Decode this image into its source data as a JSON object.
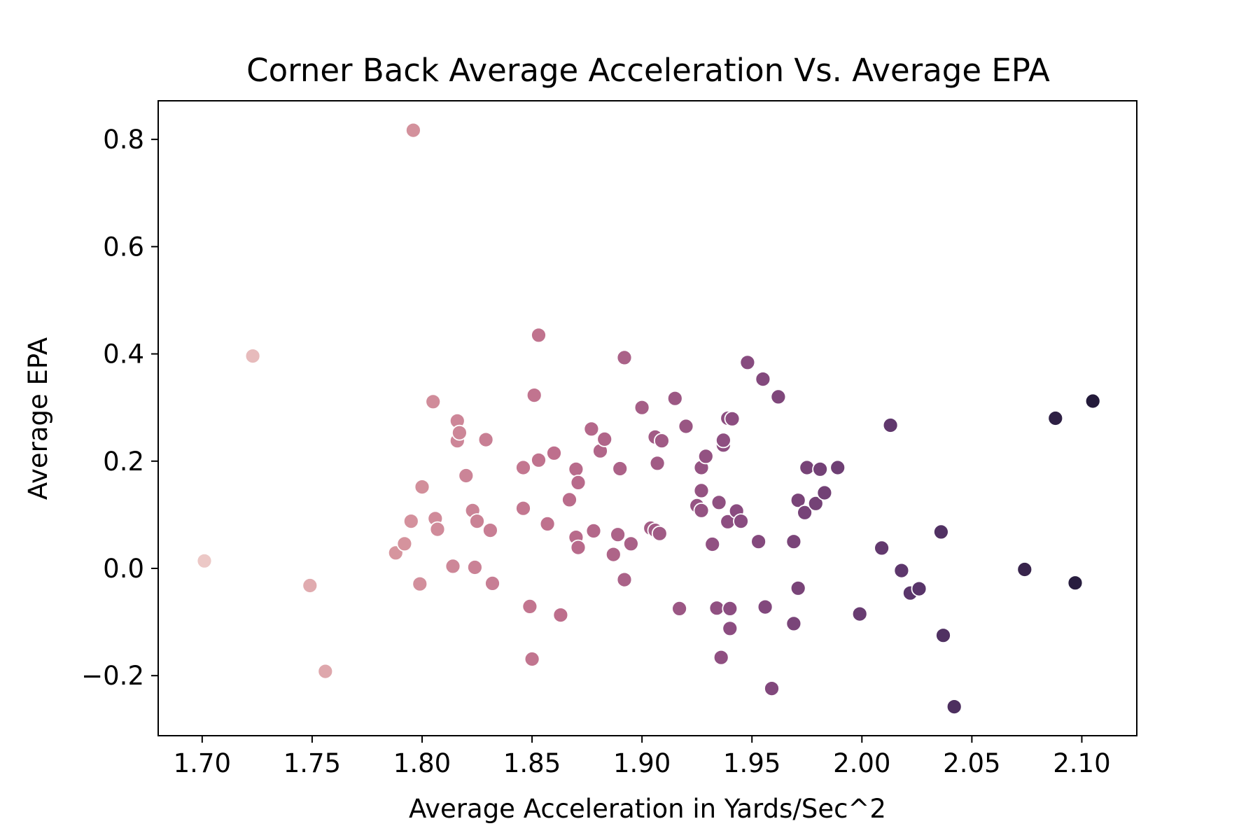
{
  "chart_data": {
    "type": "scatter",
    "title": "Corner Back Average Acceleration Vs. Average EPA",
    "xlabel": "Average Acceleration in Yards/Sec^2",
    "ylabel": "Average EPA",
    "xlim": [
      1.68,
      2.125
    ],
    "ylim": [
      -0.312,
      0.872
    ],
    "xticks": [
      1.7,
      1.75,
      1.8,
      1.85,
      1.9,
      1.95,
      2.0,
      2.05,
      2.1
    ],
    "xtick_labels": [
      "1.70",
      "1.75",
      "1.80",
      "1.85",
      "1.90",
      "1.95",
      "2.00",
      "2.05",
      "2.10"
    ],
    "yticks": [
      -0.2,
      0.0,
      0.2,
      0.4,
      0.6,
      0.8
    ],
    "ytick_labels": [
      "−0.2",
      "0.0",
      "0.2",
      "0.4",
      "0.6",
      "0.8"
    ],
    "grid": false,
    "legend": "none",
    "color_encoding": "x",
    "colormap": [
      "#ecc8c6",
      "#d898a0",
      "#bd6e8c",
      "#8a4c80",
      "#59356a",
      "#231a3a"
    ],
    "points": [
      {
        "x": 1.701,
        "y": 0.014
      },
      {
        "x": 1.723,
        "y": 0.396
      },
      {
        "x": 1.749,
        "y": -0.032
      },
      {
        "x": 1.756,
        "y": -0.192
      },
      {
        "x": 1.788,
        "y": 0.029
      },
      {
        "x": 1.792,
        "y": 0.046
      },
      {
        "x": 1.795,
        "y": 0.088
      },
      {
        "x": 1.796,
        "y": 0.817
      },
      {
        "x": 1.799,
        "y": -0.029
      },
      {
        "x": 1.8,
        "y": 0.152
      },
      {
        "x": 1.805,
        "y": 0.311
      },
      {
        "x": 1.806,
        "y": 0.093
      },
      {
        "x": 1.807,
        "y": 0.073
      },
      {
        "x": 1.814,
        "y": 0.004
      },
      {
        "x": 1.816,
        "y": 0.275
      },
      {
        "x": 1.816,
        "y": 0.238
      },
      {
        "x": 1.817,
        "y": 0.253
      },
      {
        "x": 1.82,
        "y": 0.173
      },
      {
        "x": 1.823,
        "y": 0.108
      },
      {
        "x": 1.824,
        "y": 0.002
      },
      {
        "x": 1.825,
        "y": 0.088
      },
      {
        "x": 1.829,
        "y": 0.24
      },
      {
        "x": 1.831,
        "y": 0.071
      },
      {
        "x": 1.832,
        "y": -0.028
      },
      {
        "x": 1.846,
        "y": 0.188
      },
      {
        "x": 1.846,
        "y": 0.112
      },
      {
        "x": 1.849,
        "y": -0.071
      },
      {
        "x": 1.85,
        "y": -0.169
      },
      {
        "x": 1.851,
        "y": 0.323
      },
      {
        "x": 1.853,
        "y": 0.435
      },
      {
        "x": 1.853,
        "y": 0.202
      },
      {
        "x": 1.857,
        "y": 0.083
      },
      {
        "x": 1.86,
        "y": 0.215
      },
      {
        "x": 1.863,
        "y": -0.087
      },
      {
        "x": 1.867,
        "y": 0.128
      },
      {
        "x": 1.87,
        "y": 0.185
      },
      {
        "x": 1.87,
        "y": 0.058
      },
      {
        "x": 1.871,
        "y": 0.16
      },
      {
        "x": 1.871,
        "y": 0.039
      },
      {
        "x": 1.877,
        "y": 0.26
      },
      {
        "x": 1.878,
        "y": 0.07
      },
      {
        "x": 1.881,
        "y": 0.219
      },
      {
        "x": 1.883,
        "y": 0.241
      },
      {
        "x": 1.887,
        "y": 0.026
      },
      {
        "x": 1.889,
        "y": 0.063
      },
      {
        "x": 1.89,
        "y": 0.186
      },
      {
        "x": 1.892,
        "y": 0.393
      },
      {
        "x": 1.892,
        "y": -0.021
      },
      {
        "x": 1.895,
        "y": 0.046
      },
      {
        "x": 1.9,
        "y": 0.3
      },
      {
        "x": 1.904,
        "y": 0.075
      },
      {
        "x": 1.906,
        "y": 0.245
      },
      {
        "x": 1.906,
        "y": 0.071
      },
      {
        "x": 1.907,
        "y": 0.196
      },
      {
        "x": 1.908,
        "y": 0.065
      },
      {
        "x": 1.909,
        "y": 0.238
      },
      {
        "x": 1.915,
        "y": 0.317
      },
      {
        "x": 1.917,
        "y": -0.075
      },
      {
        "x": 1.92,
        "y": 0.265
      },
      {
        "x": 1.925,
        "y": 0.117
      },
      {
        "x": 1.927,
        "y": 0.188
      },
      {
        "x": 1.927,
        "y": 0.145
      },
      {
        "x": 1.927,
        "y": 0.108
      },
      {
        "x": 1.929,
        "y": 0.209
      },
      {
        "x": 1.932,
        "y": 0.045
      },
      {
        "x": 1.934,
        "y": -0.074
      },
      {
        "x": 1.935,
        "y": 0.123
      },
      {
        "x": 1.936,
        "y": -0.166
      },
      {
        "x": 1.937,
        "y": 0.23
      },
      {
        "x": 1.937,
        "y": 0.239
      },
      {
        "x": 1.939,
        "y": 0.28
      },
      {
        "x": 1.939,
        "y": 0.087
      },
      {
        "x": 1.94,
        "y": -0.075
      },
      {
        "x": 1.94,
        "y": -0.112
      },
      {
        "x": 1.941,
        "y": 0.279
      },
      {
        "x": 1.943,
        "y": 0.107
      },
      {
        "x": 1.945,
        "y": 0.088
      },
      {
        "x": 1.948,
        "y": 0.384
      },
      {
        "x": 1.953,
        "y": 0.05
      },
      {
        "x": 1.955,
        "y": 0.353
      },
      {
        "x": 1.956,
        "y": -0.072
      },
      {
        "x": 1.959,
        "y": -0.224
      },
      {
        "x": 1.962,
        "y": 0.32
      },
      {
        "x": 1.969,
        "y": 0.05
      },
      {
        "x": 1.969,
        "y": -0.103
      },
      {
        "x": 1.971,
        "y": 0.127
      },
      {
        "x": 1.971,
        "y": -0.037
      },
      {
        "x": 1.974,
        "y": 0.104
      },
      {
        "x": 1.975,
        "y": 0.188
      },
      {
        "x": 1.979,
        "y": 0.121
      },
      {
        "x": 1.981,
        "y": 0.185
      },
      {
        "x": 1.983,
        "y": 0.141
      },
      {
        "x": 1.989,
        "y": 0.188
      },
      {
        "x": 1.999,
        "y": -0.085
      },
      {
        "x": 2.009,
        "y": 0.038
      },
      {
        "x": 2.013,
        "y": 0.267
      },
      {
        "x": 2.018,
        "y": -0.004
      },
      {
        "x": 2.022,
        "y": -0.046
      },
      {
        "x": 2.026,
        "y": -0.038
      },
      {
        "x": 2.036,
        "y": 0.068
      },
      {
        "x": 2.037,
        "y": -0.125
      },
      {
        "x": 2.042,
        "y": -0.258
      },
      {
        "x": 2.074,
        "y": -0.002
      },
      {
        "x": 2.088,
        "y": 0.28
      },
      {
        "x": 2.097,
        "y": -0.027
      },
      {
        "x": 2.105,
        "y": 0.312
      }
    ]
  }
}
